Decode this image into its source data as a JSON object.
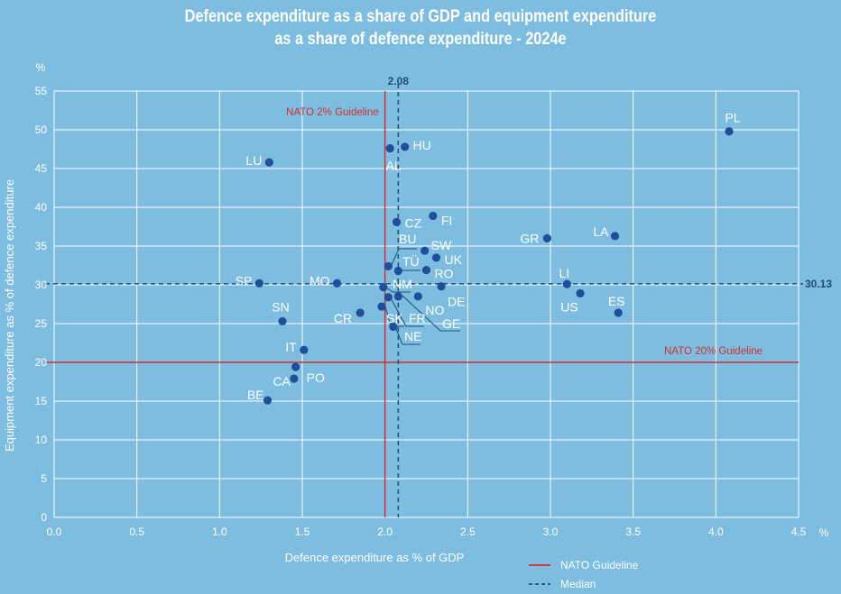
{
  "title_line1": "Defence expenditure as a share of GDP and equipment expenditure",
  "title_line2": "as a share of defence expenditure - 2024e",
  "colors": {
    "background": "#7dbde0",
    "grid": "#ffffff",
    "point": "#1f4e9a",
    "nato_line": "#d32f2f",
    "median_line": "#1f4e79"
  },
  "chart_data": {
    "type": "scatter",
    "xlabel": "Defence expenditure as % of GDP",
    "ylabel": "Equipment expenditure as % of defence expenditure",
    "x_unit": "%",
    "y_unit": "%",
    "xlim": [
      0,
      4.5
    ],
    "ylim": [
      0,
      55
    ],
    "xticks": [
      "0.0",
      "0.5",
      "1.0",
      "1.5",
      "2.0",
      "2.5",
      "3.0",
      "3.5",
      "4.0",
      "4.5"
    ],
    "yticks": [
      "0",
      "5",
      "10",
      "15",
      "20",
      "25",
      "30",
      "35",
      "40",
      "45",
      "50",
      "55"
    ],
    "grid": true,
    "points": [
      {
        "label": "PL",
        "x": 4.08,
        "y": 49.8
      },
      {
        "label": "HU",
        "x": 2.12,
        "y": 47.8
      },
      {
        "label": "AL",
        "x": 2.03,
        "y": 47.6
      },
      {
        "label": "LU",
        "x": 1.3,
        "y": 45.8
      },
      {
        "label": "FI",
        "x": 2.29,
        "y": 38.9
      },
      {
        "label": "CZ",
        "x": 2.07,
        "y": 38.1
      },
      {
        "label": "GR",
        "x": 2.98,
        "y": 36.0
      },
      {
        "label": "LA",
        "x": 3.39,
        "y": 36.3
      },
      {
        "label": "SW",
        "x": 2.24,
        "y": 34.4
      },
      {
        "label": "BU",
        "x": 2.02,
        "y": 32.4
      },
      {
        "label": "UK",
        "x": 2.31,
        "y": 33.5
      },
      {
        "label": "TÜ",
        "x": 2.08,
        "y": 31.8
      },
      {
        "label": "RO",
        "x": 2.25,
        "y": 31.9
      },
      {
        "label": "SP",
        "x": 1.24,
        "y": 30.2
      },
      {
        "label": "MO",
        "x": 1.71,
        "y": 30.2
      },
      {
        "label": "LI",
        "x": 3.1,
        "y": 30.1
      },
      {
        "label": "NM",
        "x": 1.99,
        "y": 29.7
      },
      {
        "label": "DE",
        "x": 2.34,
        "y": 29.8
      },
      {
        "label": "US",
        "x": 3.18,
        "y": 28.9
      },
      {
        "label": "NO",
        "x": 2.2,
        "y": 28.5
      },
      {
        "label": "FR",
        "x": 2.02,
        "y": 28.4
      },
      {
        "label": "GE",
        "x": 2.08,
        "y": 28.5
      },
      {
        "label": "SK",
        "x": 1.98,
        "y": 27.2
      },
      {
        "label": "CR",
        "x": 1.85,
        "y": 26.4
      },
      {
        "label": "ES",
        "x": 3.41,
        "y": 26.4
      },
      {
        "label": "SN",
        "x": 1.38,
        "y": 25.3
      },
      {
        "label": "NE",
        "x": 2.05,
        "y": 24.6
      },
      {
        "label": "IT",
        "x": 1.51,
        "y": 21.6
      },
      {
        "label": "PO",
        "x": 1.46,
        "y": 19.4
      },
      {
        "label": "CA",
        "x": 1.45,
        "y": 17.9
      },
      {
        "label": "BE",
        "x": 1.29,
        "y": 15.1
      }
    ],
    "reference_lines": [
      {
        "label": "NATO 2% Guideline",
        "axis": "x",
        "value": 2.0,
        "kind": "nato"
      },
      {
        "label": "NATO 20% Guideline",
        "axis": "y",
        "value": 20,
        "kind": "nato"
      },
      {
        "label": "2.08",
        "axis": "x",
        "value": 2.08,
        "kind": "median"
      },
      {
        "label": "30.13",
        "axis": "y",
        "value": 30.13,
        "kind": "median"
      }
    ],
    "legend": [
      {
        "label": "NATO Guideline",
        "kind": "nato"
      },
      {
        "label": "Median",
        "kind": "median"
      }
    ],
    "legend_position": "bottom-right"
  }
}
